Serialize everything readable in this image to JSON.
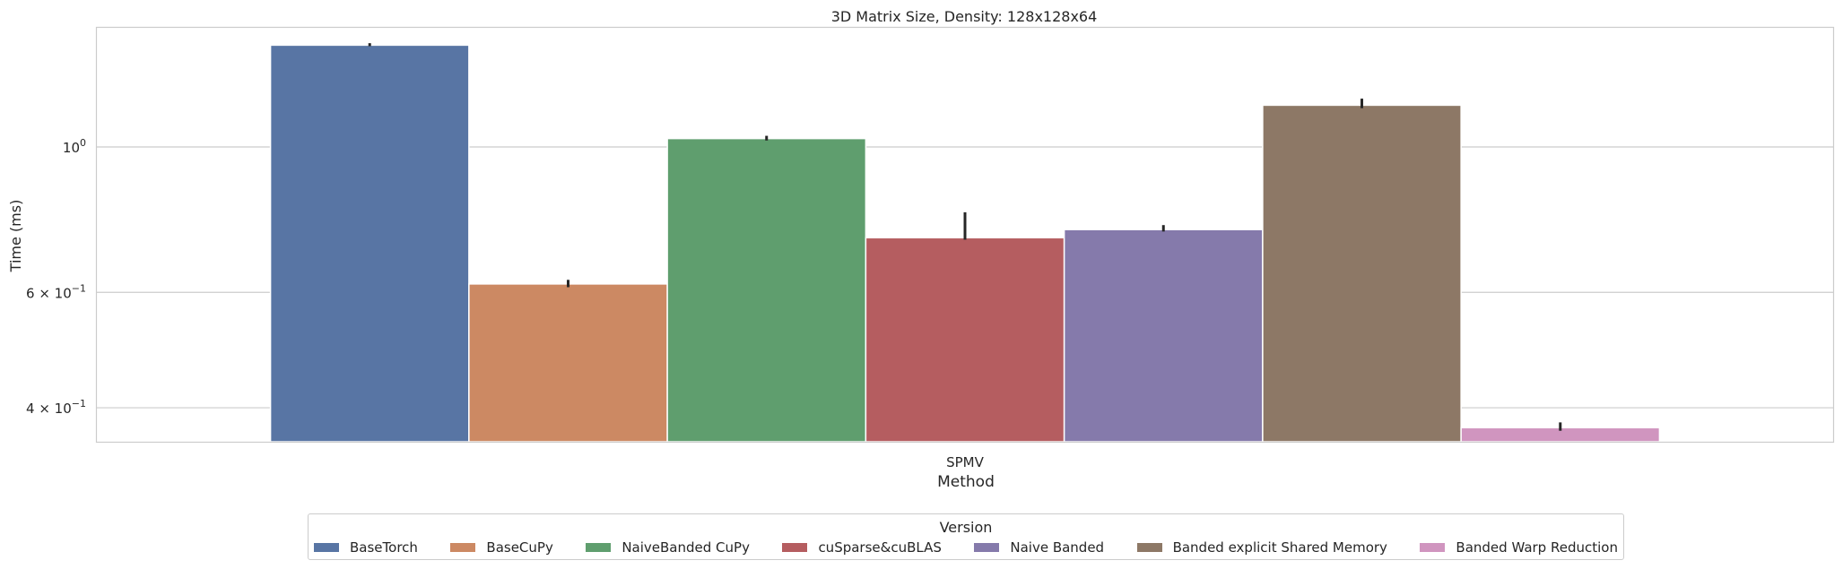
{
  "chart_data": {
    "type": "bar",
    "title": "3D Matrix Size, Density: 128x128x64",
    "xlabel": "Method",
    "ylabel": "Time (ms)",
    "yscale": "log",
    "ylim": [
      0.355,
      1.52
    ],
    "categories": [
      "SPMV"
    ],
    "grid": "horizontal",
    "y_ticks": [
      {
        "value": 1.0,
        "label_base": "10",
        "label_exp": "0"
      },
      {
        "value": 0.6,
        "label_base": "6 × 10",
        "label_exp": "−1"
      },
      {
        "value": 0.4,
        "label_base": "4 × 10",
        "label_exp": "−1"
      }
    ],
    "series": [
      {
        "name": "BaseTorch",
        "color": "#5875a4",
        "values": [
          1.43
        ],
        "err": [
          1.425,
          1.44
        ]
      },
      {
        "name": "BaseCuPy",
        "color": "#cc8963",
        "values": [
          0.618
        ],
        "err": [
          0.611,
          0.627
        ]
      },
      {
        "name": "NaiveBanded CuPy",
        "color": "#5f9e6e",
        "values": [
          1.03
        ],
        "err": [
          1.023,
          1.04
        ]
      },
      {
        "name": "cuSparse&cuBLAS",
        "color": "#b55d60",
        "values": [
          0.727
        ],
        "err": [
          0.722,
          0.795
        ]
      },
      {
        "name": "Naive Banded",
        "color": "#857aab",
        "values": [
          0.748
        ],
        "err": [
          0.743,
          0.76
        ]
      },
      {
        "name": "Banded explicit Shared Memory",
        "color": "#8d7866",
        "values": [
          1.158
        ],
        "err": [
          1.146,
          1.185
        ]
      },
      {
        "name": "Banded Warp Reduction",
        "color": "#d095bf",
        "values": [
          0.373
        ],
        "err": [
          0.369,
          0.38
        ]
      }
    ],
    "legend": {
      "title": "Version",
      "placement": "bottom-center"
    }
  }
}
